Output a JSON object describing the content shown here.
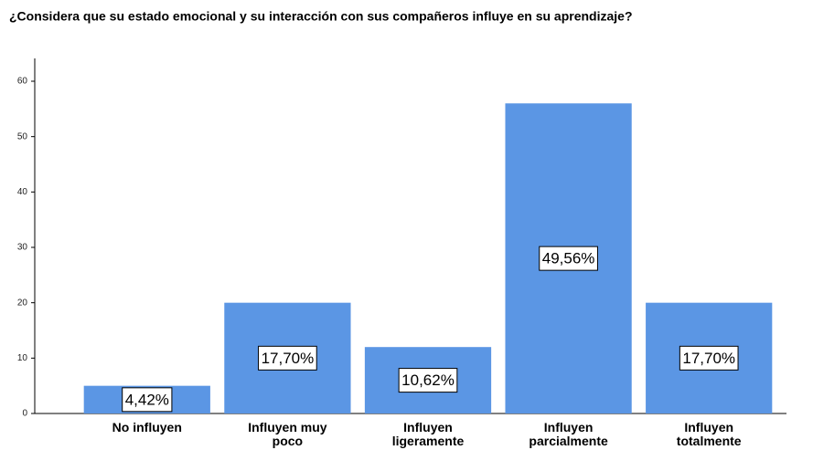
{
  "chart_data": {
    "type": "bar",
    "title": "¿Considera que su estado emocional y su interacción con sus compañeros influye en su aprendizaje?",
    "categories": [
      "No influyen",
      "Influyen muy poco",
      "Influyen ligeramente",
      "Influyen parcialmente",
      "Influyen totalmente"
    ],
    "values": [
      5,
      20,
      12,
      56,
      20
    ],
    "bar_labels": [
      "4,42%",
      "17,70%",
      "10,62%",
      "49,56%",
      "17,70%"
    ],
    "color": "#5b96e4",
    "ylim": [
      0,
      60
    ],
    "yticks": [
      0,
      10,
      20,
      30,
      40,
      50,
      60
    ],
    "grid": false
  }
}
